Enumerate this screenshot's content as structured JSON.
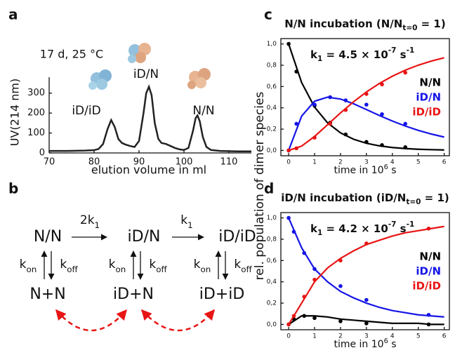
{
  "panel_labels": [
    "a",
    "b",
    "c",
    "d"
  ],
  "shared_ylabel": "rel. population of dimer species",
  "chart_data": [
    {
      "type": "line",
      "annotation": "17 d, 25 °C",
      "peak_labels": [
        "iD/iD",
        "iD/N",
        "N/N"
      ],
      "xlabel": "elution volume in ml",
      "ylabel": "UV(214 nm)",
      "color": "#222222",
      "x": [
        70,
        74,
        78,
        80,
        81,
        82,
        83,
        83.8,
        84.6,
        85.4,
        86.2,
        87,
        88,
        89,
        90,
        91,
        91.6,
        92.2,
        92.8,
        93.5,
        94.3,
        95,
        96,
        97,
        98,
        99,
        100,
        101,
        102,
        102.6,
        103,
        103.5,
        104.2,
        105,
        106,
        108,
        112,
        115
      ],
      "values": [
        10,
        10,
        12,
        14,
        20,
        45,
        120,
        165,
        130,
        70,
        50,
        42,
        35,
        30,
        60,
        200,
        300,
        332,
        290,
        150,
        70,
        50,
        45,
        35,
        25,
        18,
        15,
        25,
        110,
        175,
        188,
        160,
        80,
        30,
        15,
        10,
        8,
        8
      ],
      "xlim": [
        70,
        115
      ],
      "ylim": [
        0,
        380
      ],
      "xticks": [
        70,
        80,
        90,
        100,
        110
      ],
      "yticks": [
        0,
        100,
        200,
        300
      ]
    },
    {
      "type": "scatter",
      "title": "N/N incubation (N/N",
      "title_sub": "t=0",
      "title_tail": " = 1)",
      "rate": {
        "k": "k",
        "sub": "1",
        "text": " = 4.5 × 10",
        "exp": "-7",
        "unit": " s",
        "unit_exp": "-1"
      },
      "xlabel": "time in 10",
      "xlabel_sup": "6",
      "xlabel_tail": " s",
      "legend": "right",
      "xlim": [
        -0.3,
        6.2
      ],
      "ylim": [
        -0.05,
        1.05
      ],
      "xticks": [
        0,
        1,
        2,
        3,
        4,
        5,
        6
      ],
      "yticks": [
        {
          "value": 0,
          "label": "0,0"
        },
        {
          "value": 0.2,
          "label": "0,2"
        },
        {
          "value": 0.4,
          "label": "0,4"
        },
        {
          "value": 0.6,
          "label": "0,6"
        },
        {
          "value": 0.8,
          "label": "0,8"
        },
        {
          "value": 1,
          "label": "1,0"
        }
      ],
      "fit_x": [
        0,
        0.5,
        1,
        1.5,
        2,
        2.5,
        3,
        3.5,
        4,
        4.5,
        5,
        5.5,
        6
      ],
      "series": [
        {
          "name": "N/N",
          "color": "#000000",
          "x": [
            0,
            0.3,
            1,
            1.6,
            2.2,
            3,
            3.6,
            4.5
          ],
          "values": [
            1.0,
            0.74,
            0.42,
            0.26,
            0.15,
            0.08,
            0.05,
            0.03
          ],
          "fit_values": [
            1,
            0.6376,
            0.4066,
            0.2592,
            0.1653,
            0.1054,
            0.0672,
            0.0429,
            0.0273,
            0.0174,
            0.0111,
            0.0071,
            0.0045
          ]
        },
        {
          "name": "iD/N",
          "color": "#1515e6",
          "x": [
            0,
            0.3,
            1,
            1.6,
            2.2,
            3,
            3.6,
            4.5
          ],
          "values": [
            0,
            0.25,
            0.43,
            0.5,
            0.47,
            0.43,
            0.34,
            0.25
          ],
          "fit_values": [
            0,
            0.3218,
            0.462,
            0.5,
            0.4826,
            0.4386,
            0.384,
            0.3282,
            0.276,
            0.2292,
            0.1886,
            0.1542,
            0.1254
          ]
        },
        {
          "name": "iD/iD",
          "color": "#e81515",
          "x": [
            0,
            0.3,
            1,
            1.6,
            2.2,
            3,
            3.6,
            4.5
          ],
          "values": [
            0,
            0.02,
            0.12,
            0.25,
            0.38,
            0.53,
            0.62,
            0.73
          ],
          "fit_values": [
            0,
            0.0406,
            0.1313,
            0.2408,
            0.3521,
            0.456,
            0.5488,
            0.6289,
            0.6967,
            0.7534,
            0.8003,
            0.8389,
            0.8703
          ]
        }
      ]
    },
    {
      "type": "scatter",
      "title": "iD/N incubation (iD/N",
      "title_sub": "t=0",
      "title_tail": " = 1)",
      "rate": {
        "k": "k",
        "sub": "1",
        "text": " = 4.2 × 10",
        "exp": "-7",
        "unit": " s",
        "unit_exp": "-1"
      },
      "xlabel": "time in 10",
      "xlabel_sup": "6",
      "xlabel_tail": " s",
      "legend": "right",
      "xlim": [
        -0.3,
        6.2
      ],
      "ylim": [
        -0.05,
        1.05
      ],
      "xticks": [
        0,
        1,
        2,
        3,
        4,
        5,
        6
      ],
      "yticks": [
        {
          "value": 0,
          "label": "0,0"
        },
        {
          "value": 0.2,
          "label": "0,2"
        },
        {
          "value": 0.4,
          "label": "0,4"
        },
        {
          "value": 0.6,
          "label": "0,6"
        },
        {
          "value": 0.8,
          "label": "0,8"
        },
        {
          "value": 1,
          "label": "1,0"
        }
      ],
      "fit_x": [
        0,
        0.5,
        1,
        1.5,
        2,
        2.5,
        3,
        3.5,
        4,
        4.5,
        5,
        5.5,
        6
      ],
      "series": [
        {
          "name": "N/N",
          "color": "#000000",
          "x": [
            0,
            0.2,
            0.6,
            1,
            2,
            3,
            5.4
          ],
          "values": [
            0,
            0.05,
            0.08,
            0.06,
            0.03,
            0.01,
            0
          ],
          "fit_values": [
            0,
            0.08,
            0.08,
            0.07,
            0.05,
            0.04,
            0.03,
            0.02,
            0.01,
            0.01,
            0.01,
            0,
            0
          ]
        },
        {
          "name": "iD/N",
          "color": "#1515e6",
          "x": [
            0,
            0.2,
            0.6,
            1,
            2,
            3,
            5.4
          ],
          "values": [
            1.0,
            0.87,
            0.67,
            0.52,
            0.36,
            0.23,
            0.09
          ],
          "fit_values": [
            1,
            0.72,
            0.52,
            0.4,
            0.31,
            0.25,
            0.2,
            0.16,
            0.13,
            0.11,
            0.09,
            0.08,
            0.07
          ]
        },
        {
          "name": "iD/iD",
          "color": "#e81515",
          "x": [
            0,
            0.2,
            0.6,
            1,
            2,
            3,
            5.4
          ],
          "values": [
            0,
            0.08,
            0.26,
            0.42,
            0.6,
            0.76,
            0.9
          ],
          "fit_values": [
            0,
            0.2,
            0.4,
            0.53,
            0.62,
            0.69,
            0.75,
            0.79,
            0.83,
            0.86,
            0.88,
            0.9,
            0.92
          ]
        }
      ]
    }
  ],
  "scheme": {
    "nodes": [
      "N/N",
      "iD/N",
      "iD/iD",
      "N+N",
      "iD+N",
      "iD+iD"
    ],
    "rate_2k": {
      "base": "2k",
      "sub": "1"
    },
    "rate_k": {
      "base": "k",
      "sub": "1"
    },
    "kon": {
      "base": "k",
      "sub": "on"
    },
    "koff": {
      "base": "k",
      "sub": "off"
    }
  }
}
